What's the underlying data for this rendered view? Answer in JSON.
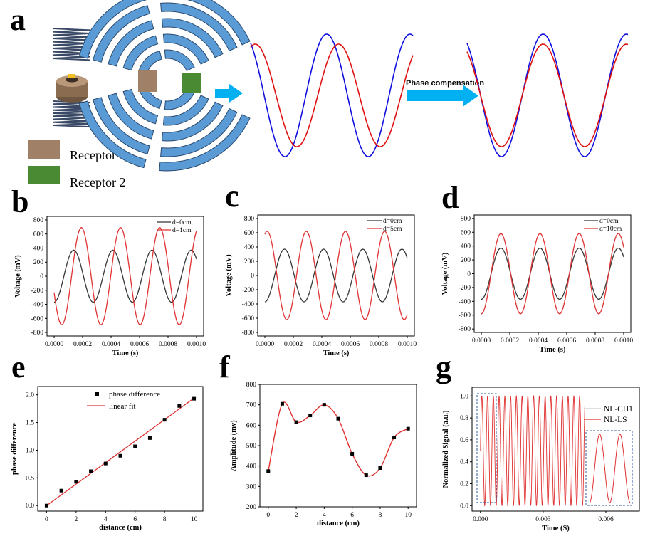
{
  "panel_labels": {
    "a": "a",
    "b": "b",
    "c": "c",
    "d": "d",
    "e": "e",
    "f": "f",
    "g": "g"
  },
  "schematic": {
    "legend": [
      {
        "label": "Receptor 1",
        "color": "#a08066"
      },
      {
        "label": "Receptor 2",
        "color": "#4a8a33"
      }
    ],
    "arrow_label": "Phase compensation",
    "wave_colors": {
      "ref": "#1010e0",
      "shifted": "#e01010"
    },
    "arrow_color": "#00b0f0",
    "arc_color": "#5b9bd5"
  },
  "chart_data": [
    {
      "id": "b",
      "type": "line",
      "xlabel": "Time (s)",
      "ylabel": "Voltage (mV)",
      "xlim": [
        -5e-05,
        0.00105
      ],
      "ylim": [
        -850,
        850
      ],
      "xticks": [
        "0.0000",
        "0.0002",
        "0.0004",
        "0.0006",
        "0.0008",
        "0.0010"
      ],
      "yticks": [
        "-800",
        "-600",
        "-400",
        "-200",
        "0",
        "200",
        "400",
        "600",
        "800"
      ],
      "legend_position": "top-right",
      "series": [
        {
          "name": "d=0cm",
          "color": "#333333",
          "amplitude": 370,
          "period": 0.000275,
          "phase": -1.571,
          "x_range": [
            0,
            0.001
          ]
        },
        {
          "name": "d=1cm",
          "color": "#e03030",
          "amplitude": 690,
          "period": 0.000275,
          "phase": -2.8,
          "x_range": [
            0,
            0.001
          ]
        }
      ]
    },
    {
      "id": "c",
      "type": "line",
      "xlabel": "Time (s)",
      "ylabel": "Voltage (mV)",
      "xlim": [
        -5e-05,
        0.00105
      ],
      "ylim": [
        -850,
        850
      ],
      "xticks": [
        "0.0000",
        "0.0002",
        "0.0004",
        "0.0006",
        "0.0008",
        "0.0010"
      ],
      "yticks": [
        "-800",
        "-600",
        "-400",
        "-200",
        "0",
        "200",
        "400",
        "600",
        "800"
      ],
      "legend_position": "top-right",
      "series": [
        {
          "name": "d=0cm",
          "color": "#333333",
          "amplitude": 370,
          "period": 0.000275,
          "phase": -1.571,
          "x_range": [
            0,
            0.001
          ]
        },
        {
          "name": "d=5cm",
          "color": "#e03030",
          "amplitude": 620,
          "period": 0.000275,
          "phase": 1.2,
          "x_range": [
            0,
            0.001
          ]
        }
      ]
    },
    {
      "id": "d",
      "type": "line",
      "xlabel": "Time (s)",
      "ylabel": "Voltage (mV)",
      "xlim": [
        -5e-05,
        0.00105
      ],
      "ylim": [
        -850,
        850
      ],
      "xticks": [
        "0.0000",
        "0.0002",
        "0.0004",
        "0.0006",
        "0.0008",
        "0.0010"
      ],
      "yticks": [
        "-800",
        "-600",
        "-400",
        "-200",
        "0",
        "200",
        "400",
        "600",
        "800"
      ],
      "legend_position": "top-right",
      "series": [
        {
          "name": "d=0cm",
          "color": "#333333",
          "amplitude": 370,
          "period": 0.000275,
          "phase": -1.571,
          "x_range": [
            0,
            0.001
          ]
        },
        {
          "name": "d=10cm",
          "color": "#e03030",
          "amplitude": 580,
          "period": 0.000275,
          "phase": -1.571,
          "x_range": [
            0,
            0.001
          ]
        }
      ]
    },
    {
      "id": "e",
      "type": "scatter",
      "xlabel": "distance (cm)",
      "ylabel": "phase difference",
      "xlim": [
        -0.6,
        10.6
      ],
      "ylim": [
        -0.1,
        2.15
      ],
      "xticks": [
        "0",
        "2",
        "4",
        "6",
        "8",
        "10"
      ],
      "yticks": [
        "0.0",
        "0.5",
        "1.0",
        "1.5",
        "2.0"
      ],
      "legend_position": "top-center",
      "series": [
        {
          "name": "phase difference",
          "color": "#000000",
          "x": [
            0,
            1,
            2,
            3,
            4,
            5,
            6,
            7,
            8,
            9,
            10
          ],
          "y": [
            0.0,
            0.27,
            0.43,
            0.62,
            0.76,
            0.9,
            1.07,
            1.22,
            1.55,
            1.8,
            1.93
          ]
        },
        {
          "name": "linear fit",
          "color": "#e03030",
          "fit_x": [
            0,
            10
          ],
          "fit_y": [
            0.0,
            1.94
          ]
        }
      ]
    },
    {
      "id": "f",
      "type": "scatter",
      "xlabel": "distance (cm)",
      "ylabel": "Amplitude (mv)",
      "xlim": [
        -0.6,
        10.6
      ],
      "ylim": [
        200,
        800
      ],
      "xticks": [
        "0",
        "2",
        "4",
        "6",
        "8",
        "10"
      ],
      "yticks": [
        "200",
        "300",
        "400",
        "500",
        "600",
        "700",
        "800"
      ],
      "series": [
        {
          "name": "",
          "color": "#000000",
          "x": [
            0,
            1,
            2,
            3,
            4,
            5,
            6,
            7,
            8,
            9,
            10
          ],
          "y": [
            375,
            705,
            615,
            648,
            700,
            632,
            460,
            355,
            390,
            540,
            583
          ]
        },
        {
          "name": "",
          "color": "#e03030",
          "fit": "spline"
        }
      ]
    },
    {
      "id": "g",
      "type": "line",
      "xlabel": "Time (S)",
      "ylabel": "Normalized Signal (a.u.)",
      "xlim": [
        -0.0004,
        0.0076
      ],
      "ylim": [
        -0.05,
        1.08
      ],
      "xticks": [
        "0.000",
        "0.003",
        "0.006"
      ],
      "yticks": [
        "0.0",
        "0.2",
        "0.4",
        "0.6",
        "0.8",
        "1.0"
      ],
      "legend_position": "right",
      "series": [
        {
          "name": "NL-CH1",
          "color": "#cccccc"
        },
        {
          "name": "NL-LS",
          "color": "#e03030",
          "period": 0.000275,
          "x_range": [
            0,
            0.005
          ]
        }
      ]
    }
  ]
}
